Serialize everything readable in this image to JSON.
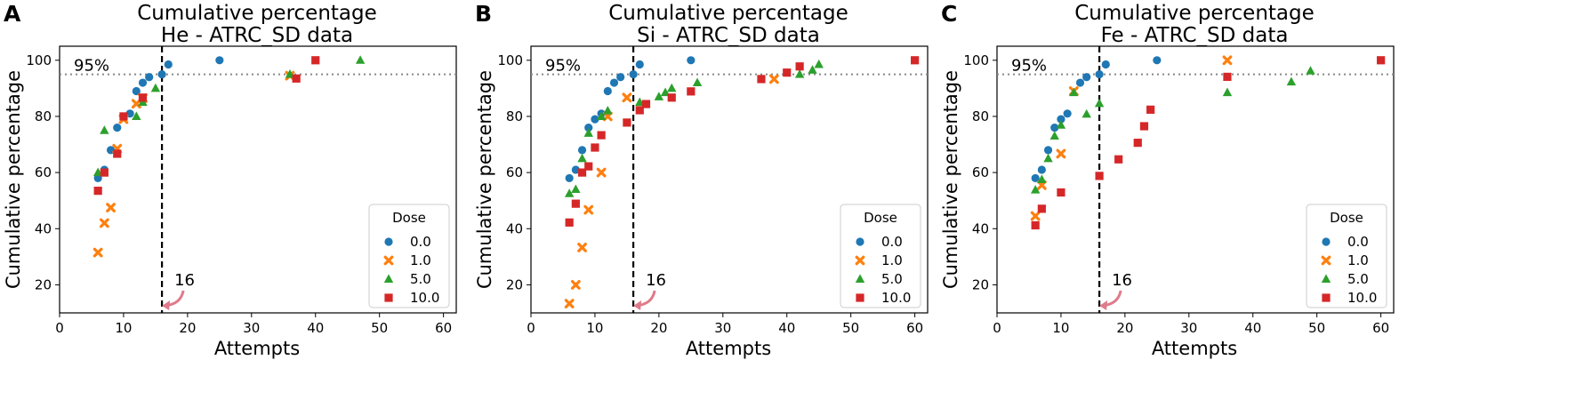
{
  "colors": {
    "0.0": "#1f77b4",
    "1.0": "#ff7f0e",
    "5.0": "#2ca02c",
    "10.0": "#d62728",
    "arrow": "#e07a8a"
  },
  "chart_data": [
    {
      "panel": "A",
      "type": "scatter",
      "title_line1": "Cumulative percentage",
      "title_line2": "He - ATRC_SD data",
      "xlabel": "Attempts",
      "ylabel": "Cumulative percentage",
      "xlim": [
        0,
        62
      ],
      "ylim": [
        10,
        105
      ],
      "xticks": [
        0,
        10,
        20,
        30,
        40,
        50,
        60
      ],
      "yticks": [
        20,
        40,
        60,
        80,
        100
      ],
      "hline": {
        "y": 95,
        "label": "95%"
      },
      "vline": {
        "x": 16,
        "label": "16"
      },
      "legend": {
        "title": "Dose",
        "position": "lower-right",
        "entries": [
          "0.0",
          "1.0",
          "5.0",
          "10.0"
        ]
      },
      "series": [
        {
          "name": "0.0",
          "marker": "circle",
          "points": [
            [
              6,
              58
            ],
            [
              7,
              61
            ],
            [
              8,
              68
            ],
            [
              9,
              76
            ],
            [
              11,
              81
            ],
            [
              12,
              89
            ],
            [
              13,
              92
            ],
            [
              14,
              94
            ],
            [
              16,
              95
            ],
            [
              17,
              98.5
            ],
            [
              25,
              100
            ]
          ]
        },
        {
          "name": "1.0",
          "marker": "x",
          "points": [
            [
              6,
              31.5
            ],
            [
              7,
              42
            ],
            [
              8,
              47.5
            ],
            [
              9,
              68.5
            ],
            [
              10,
              79
            ],
            [
              12,
              84.5
            ],
            [
              13,
              86.5
            ],
            [
              36,
              94.5
            ]
          ]
        },
        {
          "name": "5.0",
          "marker": "triangle",
          "points": [
            [
              6,
              60
            ],
            [
              7,
              75
            ],
            [
              12,
              80
            ],
            [
              13,
              85
            ],
            [
              15,
              90
            ],
            [
              36,
              95
            ],
            [
              47,
              100
            ]
          ]
        },
        {
          "name": "10.0",
          "marker": "square",
          "points": [
            [
              6,
              53.5
            ],
            [
              7,
              60
            ],
            [
              9,
              66.7
            ],
            [
              10,
              80
            ],
            [
              13,
              86.7
            ],
            [
              37,
              93.5
            ],
            [
              40,
              100
            ]
          ]
        }
      ]
    },
    {
      "panel": "B",
      "type": "scatter",
      "title_line1": "Cumulative percentage",
      "title_line2": "Si - ATRC_SD data",
      "xlabel": "Attempts",
      "ylabel": "Cumulative percentage",
      "xlim": [
        0,
        62
      ],
      "ylim": [
        10,
        105
      ],
      "xticks": [
        0,
        10,
        20,
        30,
        40,
        50,
        60
      ],
      "yticks": [
        20,
        40,
        60,
        80,
        100
      ],
      "hline": {
        "y": 95,
        "label": "95%"
      },
      "vline": {
        "x": 16,
        "label": "16"
      },
      "legend": {
        "title": "Dose",
        "position": "lower-right",
        "entries": [
          "0.0",
          "1.0",
          "5.0",
          "10.0"
        ]
      },
      "series": [
        {
          "name": "0.0",
          "marker": "circle",
          "points": [
            [
              6,
              58
            ],
            [
              7,
              61
            ],
            [
              8,
              68
            ],
            [
              9,
              76
            ],
            [
              10,
              79
            ],
            [
              11,
              81
            ],
            [
              12,
              89
            ],
            [
              13,
              92
            ],
            [
              14,
              94
            ],
            [
              16,
              95
            ],
            [
              17,
              98.5
            ],
            [
              25,
              100
            ]
          ]
        },
        {
          "name": "1.0",
          "marker": "x",
          "points": [
            [
              6,
              13.3
            ],
            [
              7,
              20
            ],
            [
              8,
              33.3
            ],
            [
              9,
              46.7
            ],
            [
              11,
              60
            ],
            [
              12,
              80
            ],
            [
              15,
              86.7
            ],
            [
              38,
              93.3
            ]
          ]
        },
        {
          "name": "5.0",
          "marker": "triangle",
          "points": [
            [
              6,
              52.5
            ],
            [
              7,
              54
            ],
            [
              8,
              65
            ],
            [
              9,
              74
            ],
            [
              11,
              80
            ],
            [
              12,
              82
            ],
            [
              17,
              85
            ],
            [
              20,
              87
            ],
            [
              21,
              88.5
            ],
            [
              22,
              90
            ],
            [
              26,
              92
            ],
            [
              42,
              95
            ],
            [
              44,
              96.5
            ],
            [
              45,
              98.5
            ]
          ]
        },
        {
          "name": "10.0",
          "marker": "square",
          "points": [
            [
              6,
              42.2
            ],
            [
              7,
              48.9
            ],
            [
              8,
              60
            ],
            [
              9,
              62.2
            ],
            [
              10,
              68.9
            ],
            [
              11,
              73.3
            ],
            [
              15,
              77.8
            ],
            [
              17,
              82.2
            ],
            [
              18,
              84.4
            ],
            [
              22,
              86.7
            ],
            [
              25,
              88.9
            ],
            [
              36,
              93.3
            ],
            [
              40,
              95.6
            ],
            [
              42,
              97.8
            ],
            [
              60,
              100
            ]
          ]
        }
      ]
    },
    {
      "panel": "C",
      "type": "scatter",
      "title_line1": "Cumulative percentage",
      "title_line2": "Fe - ATRC_SD data",
      "xlabel": "Attempts",
      "ylabel": "Cumulative percentage",
      "xlim": [
        0,
        62
      ],
      "ylim": [
        10,
        105
      ],
      "xticks": [
        0,
        10,
        20,
        30,
        40,
        50,
        60
      ],
      "yticks": [
        20,
        40,
        60,
        80,
        100
      ],
      "hline": {
        "y": 95,
        "label": "95%"
      },
      "vline": {
        "x": 16,
        "label": "16"
      },
      "legend": {
        "title": "Dose",
        "position": "lower-right",
        "entries": [
          "0.0",
          "1.0",
          "5.0",
          "10.0"
        ]
      },
      "series": [
        {
          "name": "0.0",
          "marker": "circle",
          "points": [
            [
              6,
              58
            ],
            [
              7,
              61
            ],
            [
              8,
              68
            ],
            [
              9,
              76
            ],
            [
              10,
              79
            ],
            [
              11,
              81
            ],
            [
              13,
              92
            ],
            [
              14,
              94
            ],
            [
              16,
              95
            ],
            [
              17,
              98.5
            ],
            [
              25,
              100
            ]
          ]
        },
        {
          "name": "1.0",
          "marker": "x",
          "points": [
            [
              6,
              44.5
            ],
            [
              7,
              55.5
            ],
            [
              10,
              66.7
            ],
            [
              12,
              89
            ],
            [
              36,
              100
            ]
          ]
        },
        {
          "name": "5.0",
          "marker": "triangle",
          "points": [
            [
              6,
              53.8
            ],
            [
              7,
              57.5
            ],
            [
              8,
              65
            ],
            [
              9,
              73
            ],
            [
              10,
              76.9
            ],
            [
              12,
              88.5
            ],
            [
              14,
              80.8
            ],
            [
              16,
              84.6
            ],
            [
              36,
              88.5
            ],
            [
              46,
              92.3
            ],
            [
              49,
              96.2
            ]
          ]
        },
        {
          "name": "10.0",
          "marker": "square",
          "points": [
            [
              6,
              41.2
            ],
            [
              7,
              47.1
            ],
            [
              10,
              52.9
            ],
            [
              16,
              58.8
            ],
            [
              19,
              64.7
            ],
            [
              22,
              70.6
            ],
            [
              23,
              76.5
            ],
            [
              24,
              82.4
            ],
            [
              36,
              94.1
            ],
            [
              60,
              100
            ]
          ]
        }
      ]
    }
  ]
}
